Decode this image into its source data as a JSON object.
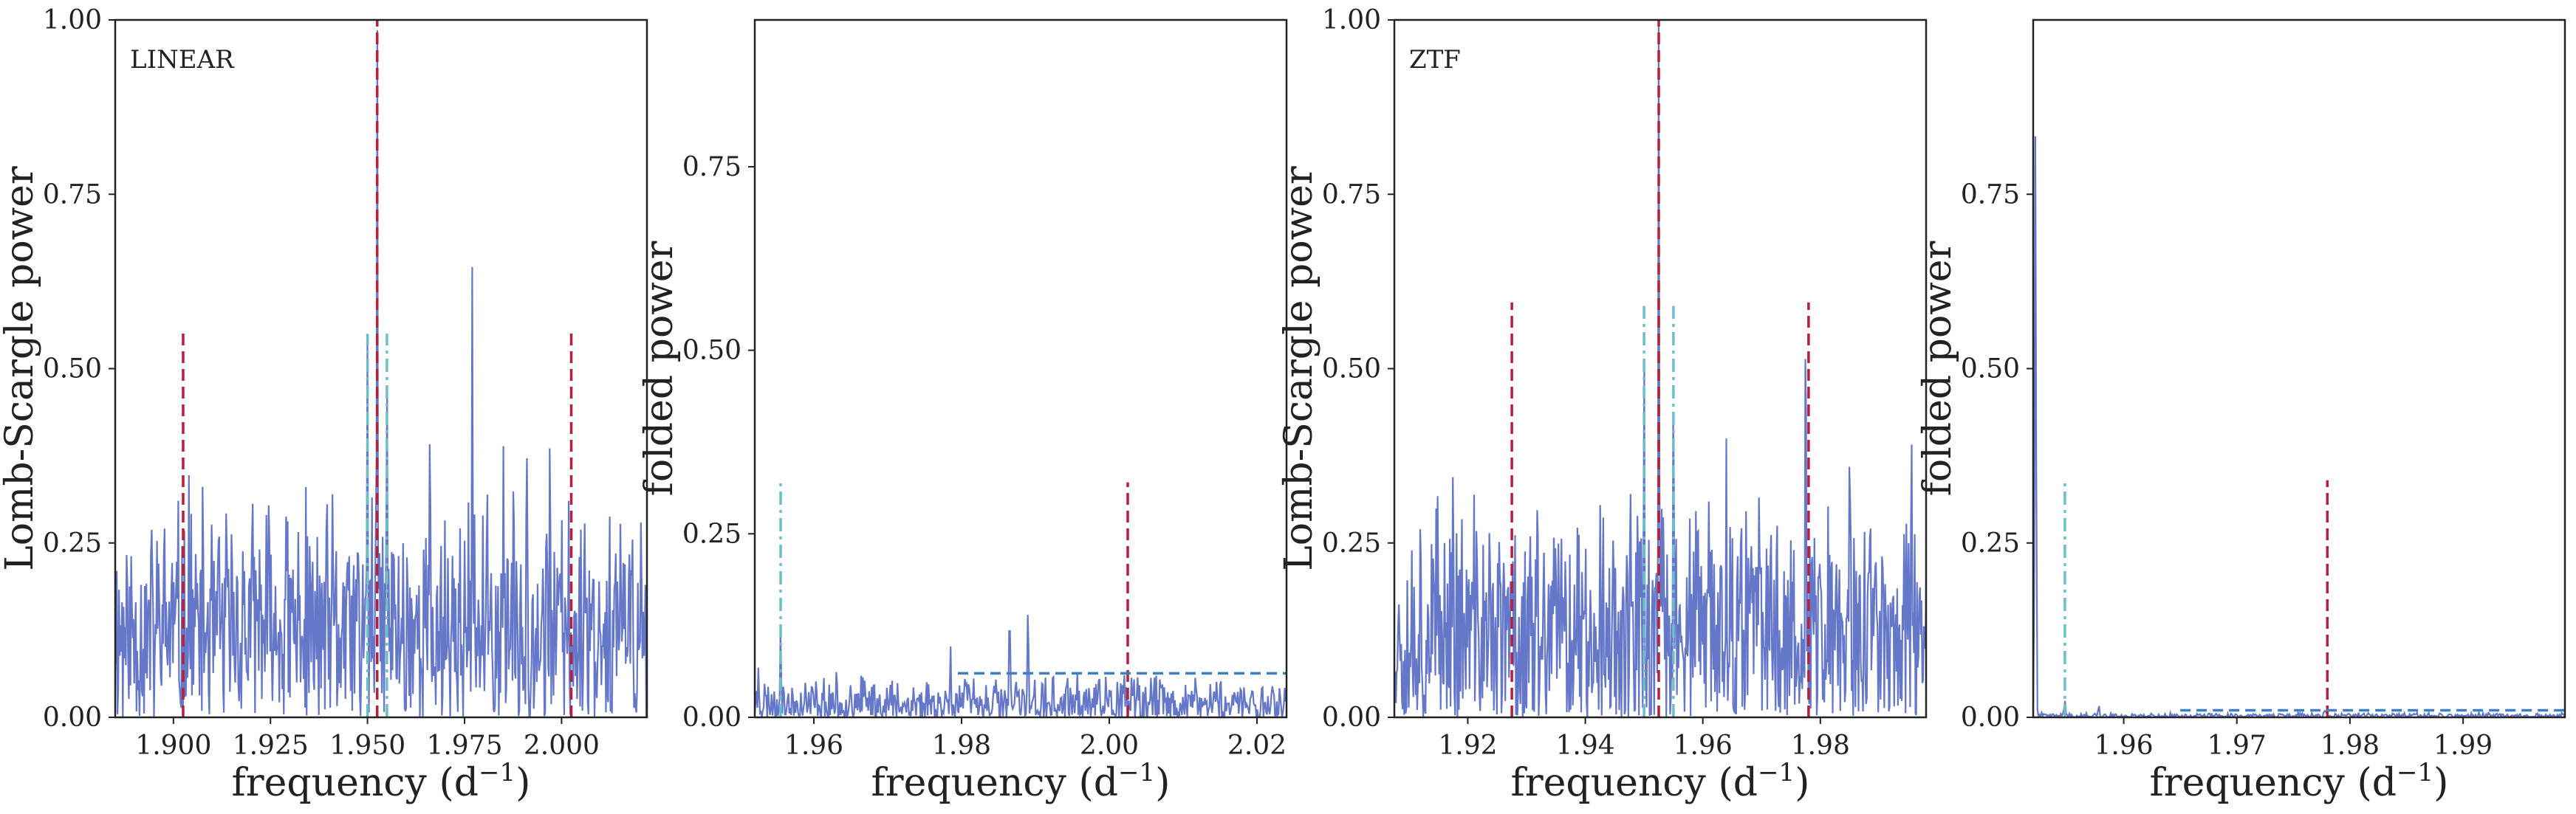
{
  "chart_data": [
    {
      "type": "line",
      "annotation": "LINEAR",
      "xlabel": "frequency (d",
      "xlabel_sup": "−1",
      "xlabel_close": ")",
      "ylabel": "Lomb-Scargle power",
      "xlim": [
        1.885,
        2.022
      ],
      "ylim": [
        0,
        1.0
      ],
      "xticks": [
        1.9,
        1.925,
        1.95,
        1.975,
        2.0
      ],
      "xtick_labels": [
        "1.900",
        "1.925",
        "1.950",
        "1.975",
        "2.000"
      ],
      "yticks": [
        0,
        0.25,
        0.5,
        0.75,
        1.0
      ],
      "ytick_labels": [
        "0.00",
        "0.25",
        "0.50",
        "0.75",
        "1.00"
      ],
      "series_color": "#6577c9",
      "noise": {
        "base": 0.11,
        "amp": 0.14,
        "seed": 11,
        "n": 700
      },
      "peaks": [
        {
          "x": 1.9525,
          "y": 1.0
        },
        {
          "x": 1.977,
          "y": 0.65
        },
        {
          "x": 1.95,
          "y": 0.55
        },
        {
          "x": 1.955,
          "y": 0.53
        },
        {
          "x": 1.904,
          "y": 0.35
        },
        {
          "x": 1.929,
          "y": 0.3
        },
        {
          "x": 1.966,
          "y": 0.4
        },
        {
          "x": 1.991,
          "y": 0.45
        },
        {
          "x": 1.985,
          "y": 0.39
        },
        {
          "x": 1.997,
          "y": 0.42
        },
        {
          "x": 2.006,
          "y": 0.3
        }
      ],
      "vlines": [
        {
          "x": 1.9025,
          "y": 0.555,
          "color": "#b5203a",
          "style": "dashed"
        },
        {
          "x": 1.9525,
          "y": 1.0,
          "color": "#b5203a",
          "style": "dashed"
        },
        {
          "x": 2.0025,
          "y": 0.555,
          "color": "#b5203a",
          "style": "dashed"
        },
        {
          "x": 1.95,
          "y": 0.55,
          "color": "#6dbfc7",
          "style": "dashdot"
        },
        {
          "x": 1.955,
          "y": 0.55,
          "color": "#6dbfc7",
          "style": "dashdot"
        }
      ],
      "hline": null
    },
    {
      "type": "line",
      "annotation": "",
      "xlabel": "frequency (d",
      "xlabel_sup": "−1",
      "xlabel_close": ")",
      "ylabel": "folded power",
      "xlim": [
        1.952,
        2.024
      ],
      "ylim": [
        0,
        0.95
      ],
      "xticks": [
        1.96,
        1.98,
        2.0,
        2.02
      ],
      "xtick_labels": [
        "1.96",
        "1.98",
        "2.00",
        "2.02"
      ],
      "yticks": [
        0,
        0.25,
        0.5,
        0.75
      ],
      "ytick_labels": [
        "0.00",
        "0.25",
        "0.50",
        "0.75"
      ],
      "series_color": "#6577c9",
      "noise": {
        "base": 0.015,
        "amp": 0.03,
        "seed": 23,
        "n": 600
      },
      "peaks": [
        {
          "x": 1.9525,
          "y": 0.07
        },
        {
          "x": 1.9555,
          "y": 0.12
        },
        {
          "x": 1.9785,
          "y": 0.1
        },
        {
          "x": 1.9865,
          "y": 0.16
        },
        {
          "x": 1.989,
          "y": 0.16
        },
        {
          "x": 1.9805,
          "y": 0.06
        },
        {
          "x": 1.965,
          "y": 0.05
        },
        {
          "x": 2.0145,
          "y": 0.05
        }
      ],
      "vlines": [
        {
          "x": 1.9555,
          "y": 0.32,
          "color": "#6dbfc7",
          "style": "dashdot"
        },
        {
          "x": 2.0025,
          "y": 0.32,
          "color": "#b5203a",
          "style": "dashed"
        }
      ],
      "hline": {
        "y": 0.06,
        "x0": 1.9795,
        "x1": 2.024,
        "color": "#3d7fc1",
        "style": "dashed"
      }
    },
    {
      "type": "line",
      "annotation": "ZTF",
      "xlabel": "frequency (d",
      "xlabel_sup": "−1",
      "xlabel_close": ")",
      "ylabel": "Lomb-Scargle power",
      "xlim": [
        1.9075,
        1.998
      ],
      "ylim": [
        0,
        1.0
      ],
      "xticks": [
        1.92,
        1.94,
        1.96,
        1.98
      ],
      "xtick_labels": [
        "1.92",
        "1.94",
        "1.96",
        "1.98"
      ],
      "yticks": [
        0,
        0.25,
        0.5,
        0.75,
        1.0
      ],
      "ytick_labels": [
        "0.00",
        "0.25",
        "0.50",
        "0.75",
        "1.00"
      ],
      "series_color": "#6577c9",
      "noise": {
        "base": 0.11,
        "amp": 0.14,
        "seed": 37,
        "n": 700
      },
      "peaks": [
        {
          "x": 1.9525,
          "y": 1.0
        },
        {
          "x": 1.9775,
          "y": 0.65
        },
        {
          "x": 1.95,
          "y": 0.55
        },
        {
          "x": 1.955,
          "y": 0.53
        },
        {
          "x": 1.9275,
          "y": 0.2
        },
        {
          "x": 1.9175,
          "y": 0.4
        },
        {
          "x": 1.985,
          "y": 0.46
        },
        {
          "x": 1.9955,
          "y": 0.45
        },
        {
          "x": 1.964,
          "y": 0.4
        },
        {
          "x": 1.9885,
          "y": 0.36
        }
      ],
      "vlines": [
        {
          "x": 1.9275,
          "y": 0.595,
          "color": "#b5203a",
          "style": "dashed"
        },
        {
          "x": 1.9525,
          "y": 1.0,
          "color": "#b5203a",
          "style": "dashed"
        },
        {
          "x": 1.978,
          "y": 0.595,
          "color": "#b5203a",
          "style": "dashed"
        },
        {
          "x": 1.95,
          "y": 0.59,
          "color": "#6dbfc7",
          "style": "dashdot"
        },
        {
          "x": 1.955,
          "y": 0.59,
          "color": "#6dbfc7",
          "style": "dashdot"
        }
      ],
      "hline": null
    },
    {
      "type": "line",
      "annotation": "",
      "xlabel": "frequency (d",
      "xlabel_sup": "−1",
      "xlabel_close": ")",
      "ylabel": "folded power",
      "xlim": [
        1.952,
        1.999
      ],
      "ylim": [
        0,
        1.0
      ],
      "xticks": [
        1.96,
        1.97,
        1.98,
        1.99
      ],
      "xtick_labels": [
        "1.96",
        "1.97",
        "1.98",
        "1.99"
      ],
      "yticks": [
        0,
        0.25,
        0.5,
        0.75
      ],
      "ytick_labels": [
        "0.00",
        "0.25",
        "0.50",
        "0.75"
      ],
      "series_color": "#6577c9",
      "noise": {
        "base": 0.002,
        "amp": 0.003,
        "seed": 41,
        "n": 500
      },
      "peaks": [
        {
          "x": 1.9522,
          "y": 0.85
        },
        {
          "x": 1.9548,
          "y": 0.025
        },
        {
          "x": 1.9578,
          "y": 0.018
        },
        {
          "x": 1.9778,
          "y": 0.012
        }
      ],
      "vlines": [
        {
          "x": 1.9548,
          "y": 0.34,
          "color": "#6dbfc7",
          "style": "dashdot"
        },
        {
          "x": 1.978,
          "y": 0.34,
          "color": "#b5203a",
          "style": "dashed"
        }
      ],
      "hline": {
        "y": 0.01,
        "x0": 1.965,
        "x1": 1.999,
        "color": "#3d7fc1",
        "style": "dashed"
      }
    }
  ]
}
